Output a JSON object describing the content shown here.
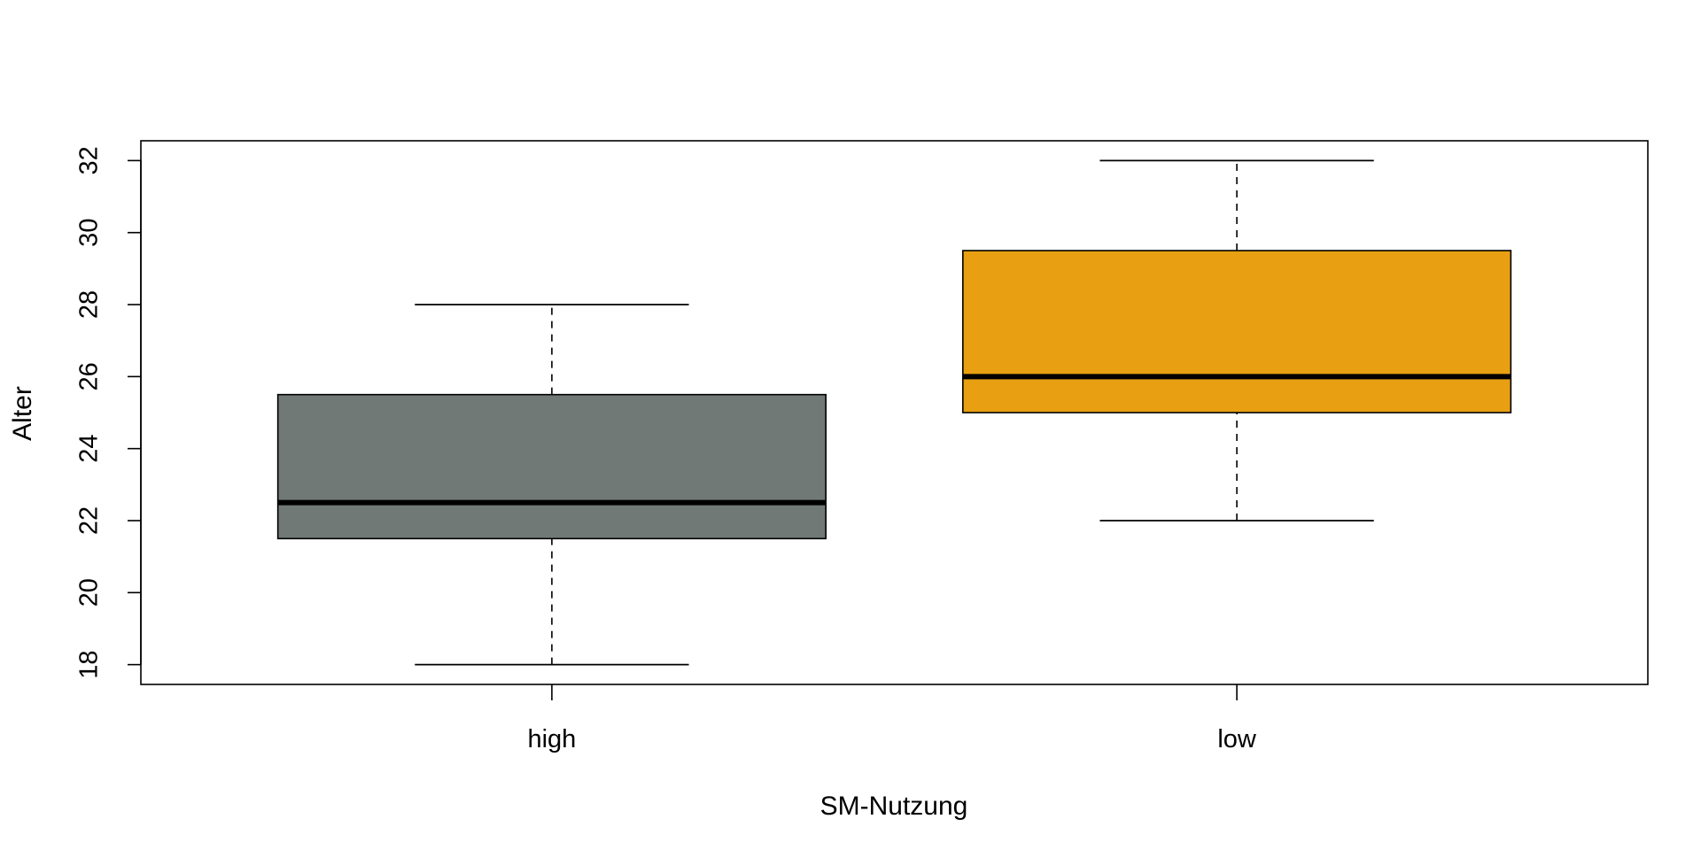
{
  "chart_data": {
    "type": "boxplot",
    "title": "",
    "xlabel": "SM-Nutzung",
    "ylabel": "Alter",
    "ylim": [
      17.45,
      32.55
    ],
    "yticks": [
      18,
      20,
      22,
      24,
      26,
      28,
      30,
      32
    ],
    "categories": [
      "high",
      "low"
    ],
    "boxes": [
      {
        "category": "high",
        "whisker_low": 18,
        "q1": 21.5,
        "median": 22.5,
        "q3": 25.5,
        "whisker_high": 28,
        "color": "#717977"
      },
      {
        "category": "low",
        "whisker_low": 22,
        "q1": 25,
        "median": 26,
        "q3": 29.5,
        "whisker_high": 32,
        "color": "#E8A012"
      }
    ],
    "grid": false,
    "legend": "none"
  }
}
